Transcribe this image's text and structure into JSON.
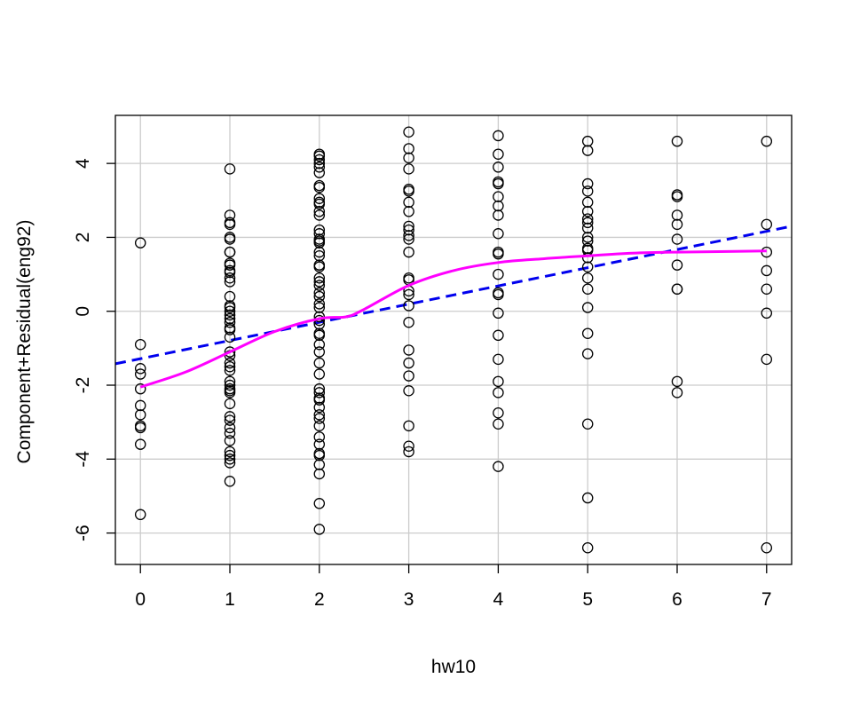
{
  "chart_data": {
    "type": "scatter",
    "title": "",
    "xlabel": "hw10",
    "ylabel": "Component+Residual(eng92)",
    "xlim": [
      -0.28,
      7.28
    ],
    "ylim": [
      -6.85,
      5.3
    ],
    "x_ticks": [
      0,
      1,
      2,
      3,
      4,
      5,
      6,
      7
    ],
    "y_ticks": [
      -6,
      -4,
      -2,
      0,
      2,
      4
    ],
    "grid": true,
    "colors": {
      "points": "#000000",
      "ls_line": "#0000ee",
      "smooth_line": "#ff00ff",
      "grid": "#cccccc"
    },
    "series": [
      {
        "type": "scatter",
        "points": [
          [
            0,
            1.85
          ],
          [
            0,
            -0.9
          ],
          [
            0,
            -1.55
          ],
          [
            0,
            -1.7
          ],
          [
            0,
            -2.1
          ],
          [
            0,
            -2.55
          ],
          [
            0,
            -2.8
          ],
          [
            0,
            -3.1
          ],
          [
            0,
            -3.15
          ],
          [
            0,
            -3.6
          ],
          [
            0,
            -5.5
          ],
          [
            1,
            3.85
          ],
          [
            1,
            2.6
          ],
          [
            1,
            2.4
          ],
          [
            1,
            2.35
          ],
          [
            1,
            2.0
          ],
          [
            1,
            1.95
          ],
          [
            1,
            1.6
          ],
          [
            1,
            1.6
          ],
          [
            1,
            1.3
          ],
          [
            1,
            1.25
          ],
          [
            1,
            1.1
          ],
          [
            1,
            1.05
          ],
          [
            1,
            0.9
          ],
          [
            1,
            0.8
          ],
          [
            1,
            0.4
          ],
          [
            1,
            0.15
          ],
          [
            1,
            0.1
          ],
          [
            1,
            0.0
          ],
          [
            1,
            -0.1
          ],
          [
            1,
            -0.2
          ],
          [
            1,
            -0.3
          ],
          [
            1,
            -0.45
          ],
          [
            1,
            -0.5
          ],
          [
            1,
            -0.7
          ],
          [
            1,
            -1.1
          ],
          [
            1,
            -1.2
          ],
          [
            1,
            -1.4
          ],
          [
            1,
            -1.5
          ],
          [
            1,
            -1.6
          ],
          [
            1,
            -1.9
          ],
          [
            1,
            -2.0
          ],
          [
            1,
            -2.1
          ],
          [
            1,
            -2.15
          ],
          [
            1,
            -2.2
          ],
          [
            1,
            -2.5
          ],
          [
            1,
            -2.85
          ],
          [
            1,
            -2.95
          ],
          [
            1,
            -3.15
          ],
          [
            1,
            -3.3
          ],
          [
            1,
            -3.5
          ],
          [
            1,
            -3.8
          ],
          [
            1,
            -3.9
          ],
          [
            1,
            -4.0
          ],
          [
            1,
            -4.1
          ],
          [
            1,
            -4.6
          ],
          [
            2,
            4.25
          ],
          [
            2,
            4.2
          ],
          [
            2,
            4.1
          ],
          [
            2,
            4.0
          ],
          [
            2,
            3.9
          ],
          [
            2,
            3.75
          ],
          [
            2,
            3.4
          ],
          [
            2,
            3.35
          ],
          [
            2,
            3.05
          ],
          [
            2,
            2.95
          ],
          [
            2,
            2.9
          ],
          [
            2,
            2.7
          ],
          [
            2,
            2.6
          ],
          [
            2,
            2.2
          ],
          [
            2,
            2.1
          ],
          [
            2,
            1.95
          ],
          [
            2,
            1.9
          ],
          [
            2,
            1.85
          ],
          [
            2,
            1.6
          ],
          [
            2,
            1.5
          ],
          [
            2,
            1.25
          ],
          [
            2,
            1.2
          ],
          [
            2,
            0.9
          ],
          [
            2,
            0.8
          ],
          [
            2,
            0.7
          ],
          [
            2,
            0.5
          ],
          [
            2,
            0.4
          ],
          [
            2,
            0.2
          ],
          [
            2,
            0.1
          ],
          [
            2,
            -0.15
          ],
          [
            2,
            -0.25
          ],
          [
            2,
            -0.35
          ],
          [
            2,
            -0.6
          ],
          [
            2,
            -0.65
          ],
          [
            2,
            -0.9
          ],
          [
            2,
            -1.1
          ],
          [
            2,
            -1.4
          ],
          [
            2,
            -1.7
          ],
          [
            2,
            -2.1
          ],
          [
            2,
            -2.2
          ],
          [
            2,
            -2.35
          ],
          [
            2,
            -2.4
          ],
          [
            2,
            -2.6
          ],
          [
            2,
            -2.8
          ],
          [
            2,
            -2.9
          ],
          [
            2,
            -3.1
          ],
          [
            2,
            -3.4
          ],
          [
            2,
            -3.6
          ],
          [
            2,
            -3.85
          ],
          [
            2,
            -3.9
          ],
          [
            2,
            -4.15
          ],
          [
            2,
            -4.4
          ],
          [
            2,
            -5.2
          ],
          [
            2,
            -5.9
          ],
          [
            3,
            4.85
          ],
          [
            3,
            4.4
          ],
          [
            3,
            4.15
          ],
          [
            3,
            3.85
          ],
          [
            3,
            3.3
          ],
          [
            3,
            3.25
          ],
          [
            3,
            2.95
          ],
          [
            3,
            2.7
          ],
          [
            3,
            2.3
          ],
          [
            3,
            2.2
          ],
          [
            3,
            2.05
          ],
          [
            3,
            1.95
          ],
          [
            3,
            1.6
          ],
          [
            3,
            0.9
          ],
          [
            3,
            0.85
          ],
          [
            3,
            0.55
          ],
          [
            3,
            0.45
          ],
          [
            3,
            0.15
          ],
          [
            3,
            -0.3
          ],
          [
            3,
            -1.05
          ],
          [
            3,
            -1.4
          ],
          [
            3,
            -1.75
          ],
          [
            3,
            -2.15
          ],
          [
            3,
            -3.1
          ],
          [
            3,
            -3.65
          ],
          [
            3,
            -3.8
          ],
          [
            4,
            4.75
          ],
          [
            4,
            4.25
          ],
          [
            4,
            3.9
          ],
          [
            4,
            3.5
          ],
          [
            4,
            3.45
          ],
          [
            4,
            3.1
          ],
          [
            4,
            2.85
          ],
          [
            4,
            2.6
          ],
          [
            4,
            2.1
          ],
          [
            4,
            1.6
          ],
          [
            4,
            1.55
          ],
          [
            4,
            1.0
          ],
          [
            4,
            0.5
          ],
          [
            4,
            0.45
          ],
          [
            4,
            -0.05
          ],
          [
            4,
            -0.65
          ],
          [
            4,
            -1.3
          ],
          [
            4,
            -1.9
          ],
          [
            4,
            -2.2
          ],
          [
            4,
            -2.75
          ],
          [
            4,
            -3.05
          ],
          [
            4,
            -4.2
          ],
          [
            5,
            4.6
          ],
          [
            5,
            4.35
          ],
          [
            5,
            3.45
          ],
          [
            5,
            3.25
          ],
          [
            5,
            2.95
          ],
          [
            5,
            2.7
          ],
          [
            5,
            2.5
          ],
          [
            5,
            2.4
          ],
          [
            5,
            2.25
          ],
          [
            5,
            2.0
          ],
          [
            5,
            1.9
          ],
          [
            5,
            1.7
          ],
          [
            5,
            1.65
          ],
          [
            5,
            1.45
          ],
          [
            5,
            1.2
          ],
          [
            5,
            0.9
          ],
          [
            5,
            0.6
          ],
          [
            5,
            0.1
          ],
          [
            5,
            -0.6
          ],
          [
            5,
            -1.15
          ],
          [
            5,
            -3.05
          ],
          [
            5,
            -5.05
          ],
          [
            5,
            -6.4
          ],
          [
            6,
            4.6
          ],
          [
            6,
            3.15
          ],
          [
            6,
            3.1
          ],
          [
            6,
            2.6
          ],
          [
            6,
            2.35
          ],
          [
            6,
            1.95
          ],
          [
            6,
            1.25
          ],
          [
            6,
            0.6
          ],
          [
            6,
            0.6
          ],
          [
            6,
            -1.9
          ],
          [
            6,
            -2.2
          ],
          [
            7,
            4.6
          ],
          [
            7,
            2.35
          ],
          [
            7,
            1.6
          ],
          [
            7,
            1.1
          ],
          [
            7,
            0.6
          ],
          [
            7,
            -0.05
          ],
          [
            7,
            -1.3
          ],
          [
            7,
            -6.4
          ]
        ]
      },
      {
        "type": "line",
        "style": "dashed",
        "points": [
          [
            -0.28,
            -1.42
          ],
          [
            7.28,
            2.3
          ]
        ]
      },
      {
        "type": "line",
        "style": "solid",
        "points": [
          [
            0,
            -2.05
          ],
          [
            0.5,
            -1.65
          ],
          [
            1,
            -1.1
          ],
          [
            1.5,
            -0.55
          ],
          [
            2,
            -0.2
          ],
          [
            2.3,
            -0.15
          ],
          [
            2.5,
            0.05
          ],
          [
            3,
            0.7
          ],
          [
            3.5,
            1.1
          ],
          [
            4,
            1.32
          ],
          [
            4.5,
            1.42
          ],
          [
            5,
            1.5
          ],
          [
            5.5,
            1.57
          ],
          [
            6,
            1.6
          ],
          [
            7,
            1.63
          ]
        ]
      }
    ]
  }
}
